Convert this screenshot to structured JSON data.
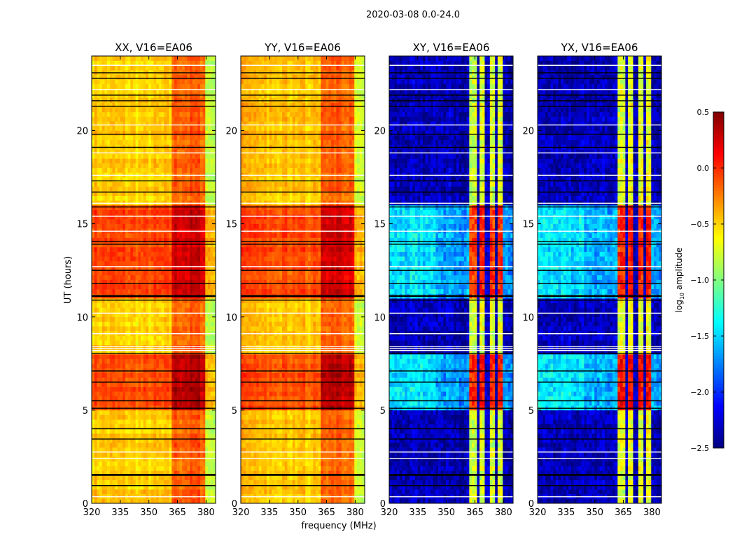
{
  "chart_data": {
    "type": "heatmap",
    "title": "2020-03-08 0.0-24.0",
    "xlabel": "frequency (MHz)",
    "ylabel": "UT (hours)",
    "xlim": [
      320,
      385
    ],
    "ylim": [
      0,
      24
    ],
    "xticks": [
      320,
      335,
      350,
      365,
      380
    ],
    "yticks": [
      0,
      5,
      10,
      15,
      20
    ],
    "colormap": "jet",
    "colorbar": {
      "label_main": "log",
      "label_sub": "10",
      "label_tail": " amplitude",
      "range": [
        -2.5,
        0.5
      ],
      "ticks": [
        "0.5",
        "0.0",
        "−0.5",
        "−1.0",
        "−1.5",
        "−2.0",
        "−2.5"
      ]
    },
    "rfi_band_mhz": [
      362,
      380
    ],
    "rfi_gaps_mhz": [
      366.5,
      371.5,
      376.5
    ],
    "bright_periods_hours": [
      [
        5.1,
        8.0
      ],
      [
        11.1,
        15.9
      ]
    ],
    "flag_rows_black_hours": [
      0.95,
      1.5,
      1.55,
      3.45,
      4.0,
      5.1,
      5.5,
      6.5,
      7.1,
      8.05,
      10.9,
      11.1,
      11.15,
      11.8,
      12.5,
      13.9,
      14.05,
      15.9,
      16.7,
      17.3,
      19.1,
      19.8,
      21.3,
      21.6,
      21.9,
      22.8,
      23.1
    ],
    "flag_rows_white_hours": [
      0.35,
      2.4,
      2.75,
      8.2,
      8.3,
      8.4,
      9.1,
      10.2,
      12.7,
      14.6,
      15.4,
      16.1,
      17.6,
      18.8,
      20.3,
      22.2,
      23.5
    ],
    "panels": [
      {
        "title": "XX, V16=EA06",
        "base": -0.5,
        "bright_base": -0.1,
        "rfi_level": -0.15,
        "rfi_bright_level": 0.25
      },
      {
        "title": "YY, V16=EA06",
        "base": -0.45,
        "bright_base": -0.1,
        "rfi_level": -0.15,
        "rfi_bright_level": 0.25
      },
      {
        "title": "XY, V16=EA06",
        "base": -2.35,
        "bright_base": -1.65,
        "rfi_level": -0.75,
        "rfi_bright_level": 0.0
      },
      {
        "title": "YX, V16=EA06",
        "base": -2.35,
        "bright_base": -1.65,
        "rfi_level": -0.75,
        "rfi_bright_level": 0.0
      }
    ]
  }
}
